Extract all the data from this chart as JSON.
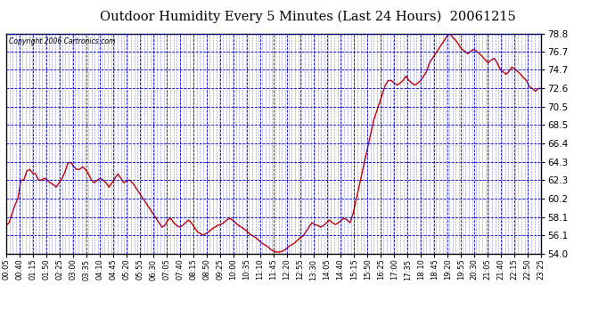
{
  "title": "Outdoor Humidity Every 5 Minutes (Last 24 Hours)  20061215",
  "copyright": "Copyright 2006 Cartronics.com",
  "background_color": "#ffffff",
  "plot_bg_color": "#ffffff",
  "line_color": "#cc0000",
  "grid_color": "#0000cc",
  "y_ticks": [
    54.0,
    56.1,
    58.1,
    60.2,
    62.3,
    64.3,
    66.4,
    68.5,
    70.5,
    72.6,
    74.7,
    76.7,
    78.8
  ],
  "ylim": [
    54.0,
    78.8
  ],
  "x_labels": [
    "00:05",
    "00:40",
    "01:15",
    "01:50",
    "02:25",
    "03:00",
    "03:35",
    "04:10",
    "04:45",
    "05:20",
    "05:55",
    "06:30",
    "07:05",
    "07:40",
    "08:15",
    "08:50",
    "09:25",
    "10:00",
    "10:35",
    "11:10",
    "11:45",
    "12:20",
    "12:55",
    "13:30",
    "14:05",
    "14:40",
    "15:15",
    "15:50",
    "16:25",
    "17:00",
    "17:35",
    "18:10",
    "18:45",
    "19:20",
    "19:55",
    "20:30",
    "21:05",
    "21:40",
    "22:15",
    "22:50",
    "23:25"
  ],
  "humidity_values": [
    57.2,
    57.5,
    58.5,
    59.5,
    60.2,
    62.3,
    62.3,
    63.3,
    63.5,
    63.1,
    63.0,
    62.3,
    62.3,
    62.5,
    62.3,
    62.0,
    61.8,
    61.5,
    62.0,
    62.5,
    63.2,
    64.2,
    64.3,
    63.8,
    63.5,
    63.5,
    63.8,
    63.5,
    63.0,
    62.3,
    62.0,
    62.3,
    62.5,
    62.3,
    62.0,
    61.5,
    62.0,
    62.5,
    63.0,
    62.5,
    62.0,
    62.2,
    62.3,
    62.0,
    61.5,
    61.0,
    60.5,
    60.0,
    59.5,
    59.0,
    58.5,
    58.0,
    57.5,
    57.0,
    57.2,
    57.8,
    58.0,
    57.5,
    57.2,
    57.0,
    57.2,
    57.5,
    57.8,
    57.5,
    57.0,
    56.5,
    56.3,
    56.1,
    56.3,
    56.5,
    56.8,
    57.0,
    57.2,
    57.3,
    57.5,
    57.8,
    58.0,
    57.8,
    57.5,
    57.2,
    57.0,
    56.8,
    56.5,
    56.2,
    56.0,
    55.8,
    55.5,
    55.2,
    55.0,
    54.8,
    54.5,
    54.3,
    54.2,
    54.2,
    54.3,
    54.5,
    54.8,
    55.0,
    55.2,
    55.5,
    55.8,
    56.0,
    56.5,
    57.0,
    57.5,
    57.3,
    57.2,
    57.0,
    57.2,
    57.5,
    57.8,
    57.5,
    57.3,
    57.5,
    57.8,
    58.0,
    57.8,
    57.5,
    58.5,
    60.0,
    61.5,
    63.0,
    64.5,
    66.0,
    67.5,
    69.0,
    70.0,
    71.0,
    72.0,
    73.0,
    73.5,
    73.5,
    73.2,
    73.0,
    73.2,
    73.5,
    74.0,
    73.5,
    73.2,
    73.0,
    73.2,
    73.5,
    74.0,
    74.5,
    75.5,
    76.0,
    76.5,
    77.0,
    77.5,
    78.0,
    78.5,
    78.8,
    78.3,
    78.0,
    77.5,
    77.0,
    76.8,
    76.5,
    76.8,
    77.0,
    76.8,
    76.5,
    76.2,
    75.8,
    75.5,
    75.8,
    76.0,
    75.5,
    74.8,
    74.5,
    74.2,
    74.5,
    75.0,
    74.8,
    74.5,
    74.2,
    73.8,
    73.5,
    72.8,
    72.6,
    72.3,
    72.6,
    72.6
  ]
}
